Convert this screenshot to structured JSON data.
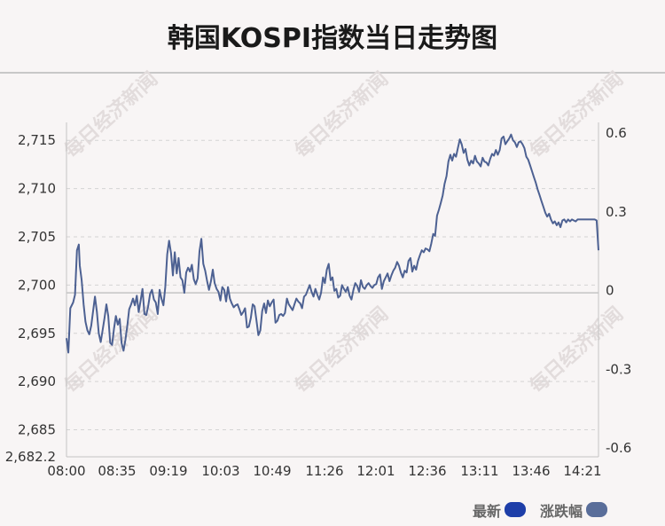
{
  "title": "韩国KOSPI指数当日走势图",
  "watermark": "每日经济新闻",
  "colors": {
    "latest": "#1e3ea8",
    "change": "#5a6e9a",
    "line": "#4d6192",
    "grid": "#d4d4d4"
  },
  "legend": {
    "latest": "最新",
    "change": "涨跌幅"
  },
  "chart_data": {
    "type": "line",
    "title": "韩国KOSPI指数当日走势图",
    "x_ticks": [
      "08:00",
      "08:35",
      "09:19",
      "10:03",
      "10:49",
      "11:26",
      "12:01",
      "12:36",
      "13:11",
      "13:46",
      "14:21"
    ],
    "y_left_ticks": [
      "2,715",
      "2,710",
      "2,705",
      "2,700",
      "2,695",
      "2,690",
      "2,685",
      "2,682.2"
    ],
    "y_left_values": [
      2715,
      2710,
      2705,
      2700,
      2695,
      2690,
      2685,
      2682.2
    ],
    "y_right_ticks": [
      "0.6",
      "0.3",
      "0",
      "-0.3",
      "-0.6"
    ],
    "y_right_values": [
      0.6,
      0.3,
      0,
      -0.3,
      -0.6
    ],
    "ylim_left": [
      2682.2,
      2716.4
    ],
    "ylim_right": [
      -0.6,
      0.6
    ],
    "reference_value": 2699.2,
    "grid": true,
    "legend_position": "bottom-right",
    "series": [
      {
        "name": "最新",
        "points": [
          [
            0,
            2694.5
          ],
          [
            2,
            2693.0
          ],
          [
            4,
            2697.6
          ],
          [
            7,
            2698.2
          ],
          [
            9,
            2699.0
          ],
          [
            11,
            2703.6
          ],
          [
            13,
            2704.2
          ],
          [
            14,
            2702.0
          ],
          [
            16,
            2700.5
          ],
          [
            18,
            2698.0
          ],
          [
            20,
            2696.2
          ],
          [
            22,
            2695.3
          ],
          [
            24,
            2694.9
          ],
          [
            26,
            2695.8
          ],
          [
            28,
            2697.3
          ],
          [
            30,
            2698.8
          ],
          [
            32,
            2697.2
          ],
          [
            34,
            2695.0
          ],
          [
            36,
            2694.1
          ],
          [
            38,
            2695.3
          ],
          [
            40,
            2696.6
          ],
          [
            42,
            2698.0
          ],
          [
            44,
            2696.8
          ],
          [
            46,
            2694.0
          ],
          [
            48,
            2693.8
          ],
          [
            50,
            2695.5
          ],
          [
            52,
            2696.8
          ],
          [
            54,
            2695.9
          ],
          [
            56,
            2696.5
          ],
          [
            58,
            2694.0
          ],
          [
            60,
            2693.2
          ],
          [
            62,
            2694.3
          ],
          [
            64,
            2695.8
          ],
          [
            66,
            2697.5
          ],
          [
            68,
            2698.0
          ],
          [
            70,
            2698.6
          ],
          [
            72,
            2697.9
          ],
          [
            74,
            2698.9
          ],
          [
            76,
            2697.2
          ],
          [
            78,
            2698.4
          ],
          [
            80,
            2699.6
          ],
          [
            82,
            2697.0
          ],
          [
            84,
            2696.9
          ],
          [
            86,
            2697.8
          ],
          [
            88,
            2699.1
          ],
          [
            90,
            2699.5
          ],
          [
            92,
            2698.5
          ],
          [
            94,
            2698.2
          ],
          [
            96,
            2697.0
          ],
          [
            98,
            2699.5
          ],
          [
            100,
            2698.6
          ],
          [
            102,
            2697.9
          ],
          [
            104,
            2699.8
          ],
          [
            106,
            2703.2
          ],
          [
            108,
            2704.6
          ],
          [
            110,
            2703.3
          ],
          [
            112,
            2701.0
          ],
          [
            114,
            2703.4
          ],
          [
            116,
            2701.2
          ],
          [
            118,
            2702.8
          ],
          [
            120,
            2700.8
          ],
          [
            122,
            2700.5
          ],
          [
            124,
            2699.2
          ],
          [
            126,
            2701.3
          ],
          [
            128,
            2701.8
          ],
          [
            130,
            2701.4
          ],
          [
            132,
            2702.1
          ],
          [
            134,
            2700.6
          ],
          [
            136,
            2700.1
          ],
          [
            138,
            2700.7
          ],
          [
            140,
            2703.5
          ],
          [
            142,
            2704.8
          ],
          [
            144,
            2702.2
          ],
          [
            146,
            2701.5
          ],
          [
            148,
            2700.4
          ],
          [
            150,
            2699.5
          ],
          [
            152,
            2700.4
          ],
          [
            154,
            2701.6
          ],
          [
            156,
            2700.2
          ],
          [
            158,
            2699.6
          ],
          [
            160,
            2699.3
          ],
          [
            162,
            2698.4
          ],
          [
            164,
            2699.8
          ],
          [
            166,
            2699.5
          ],
          [
            168,
            2698.3
          ],
          [
            170,
            2699.8
          ],
          [
            172,
            2698.6
          ],
          [
            174,
            2698.1
          ],
          [
            176,
            2697.7
          ],
          [
            178,
            2697.9
          ],
          [
            180,
            2698.0
          ],
          [
            182,
            2697.5
          ],
          [
            184,
            2696.9
          ],
          [
            186,
            2697.2
          ],
          [
            188,
            2697.6
          ],
          [
            190,
            2695.6
          ],
          [
            192,
            2695.7
          ],
          [
            194,
            2696.6
          ],
          [
            196,
            2698.0
          ],
          [
            198,
            2697.8
          ],
          [
            200,
            2696.3
          ],
          [
            202,
            2694.8
          ],
          [
            204,
            2695.3
          ],
          [
            206,
            2697.3
          ],
          [
            208,
            2698.1
          ],
          [
            210,
            2697.1
          ],
          [
            212,
            2698.4
          ],
          [
            214,
            2697.8
          ],
          [
            216,
            2698.2
          ],
          [
            218,
            2698.5
          ],
          [
            220,
            2696.1
          ],
          [
            222,
            2696.3
          ],
          [
            224,
            2696.9
          ],
          [
            226,
            2697.0
          ],
          [
            228,
            2696.8
          ],
          [
            230,
            2697.1
          ],
          [
            232,
            2698.6
          ],
          [
            234,
            2698.0
          ],
          [
            236,
            2697.7
          ],
          [
            238,
            2697.4
          ],
          [
            240,
            2698.0
          ],
          [
            242,
            2698.6
          ],
          [
            244,
            2698.3
          ],
          [
            246,
            2698.1
          ],
          [
            248,
            2697.6
          ],
          [
            250,
            2698.8
          ],
          [
            252,
            2699.0
          ],
          [
            254,
            2699.5
          ],
          [
            256,
            2700.0
          ],
          [
            258,
            2699.3
          ],
          [
            260,
            2698.8
          ],
          [
            262,
            2699.6
          ],
          [
            264,
            2699.0
          ],
          [
            266,
            2698.5
          ],
          [
            268,
            2699.2
          ],
          [
            270,
            2700.8
          ],
          [
            272,
            2700.2
          ],
          [
            274,
            2701.6
          ],
          [
            276,
            2702.2
          ],
          [
            278,
            2700.5
          ],
          [
            280,
            2700.8
          ],
          [
            282,
            2699.4
          ],
          [
            284,
            2699.6
          ],
          [
            286,
            2698.7
          ],
          [
            288,
            2698.9
          ],
          [
            290,
            2700.0
          ],
          [
            292,
            2699.6
          ],
          [
            294,
            2699.3
          ],
          [
            296,
            2699.8
          ],
          [
            298,
            2698.9
          ],
          [
            300,
            2698.5
          ],
          [
            302,
            2699.5
          ],
          [
            304,
            2700.2
          ],
          [
            306,
            2699.9
          ],
          [
            308,
            2699.3
          ],
          [
            310,
            2700.5
          ],
          [
            312,
            2699.8
          ],
          [
            314,
            2699.6
          ],
          [
            316,
            2700.0
          ],
          [
            318,
            2700.2
          ],
          [
            320,
            2699.9
          ],
          [
            322,
            2699.7
          ],
          [
            324,
            2700.0
          ],
          [
            326,
            2700.1
          ],
          [
            328,
            2700.8
          ],
          [
            330,
            2701.1
          ],
          [
            332,
            2699.6
          ],
          [
            334,
            2700.4
          ],
          [
            336,
            2700.8
          ],
          [
            338,
            2701.2
          ],
          [
            340,
            2700.4
          ],
          [
            342,
            2701.0
          ],
          [
            344,
            2701.5
          ],
          [
            346,
            2701.8
          ],
          [
            348,
            2702.4
          ],
          [
            350,
            2702.0
          ],
          [
            352,
            2701.3
          ],
          [
            354,
            2700.8
          ],
          [
            356,
            2701.5
          ],
          [
            358,
            2701.3
          ],
          [
            360,
            2702.5
          ],
          [
            362,
            2702.8
          ],
          [
            364,
            2701.4
          ],
          [
            366,
            2702.0
          ],
          [
            368,
            2701.6
          ],
          [
            370,
            2702.5
          ],
          [
            372,
            2703.1
          ],
          [
            374,
            2703.6
          ],
          [
            376,
            2703.4
          ],
          [
            378,
            2703.8
          ],
          [
            380,
            2703.7
          ],
          [
            382,
            2703.5
          ],
          [
            384,
            2704.3
          ],
          [
            386,
            2705.3
          ],
          [
            388,
            2705.1
          ],
          [
            390,
            2707.2
          ],
          [
            392,
            2707.8
          ],
          [
            394,
            2708.5
          ],
          [
            396,
            2709.3
          ],
          [
            398,
            2710.5
          ],
          [
            400,
            2711.3
          ],
          [
            402,
            2712.8
          ],
          [
            404,
            2713.5
          ],
          [
            406,
            2712.9
          ],
          [
            408,
            2713.6
          ],
          [
            410,
            2713.3
          ],
          [
            412,
            2714.2
          ],
          [
            414,
            2715.1
          ],
          [
            416,
            2714.6
          ],
          [
            418,
            2713.7
          ],
          [
            420,
            2714.1
          ],
          [
            422,
            2713.0
          ],
          [
            424,
            2712.4
          ],
          [
            426,
            2712.9
          ],
          [
            428,
            2712.6
          ],
          [
            430,
            2713.4
          ],
          [
            432,
            2712.8
          ],
          [
            434,
            2712.6
          ],
          [
            436,
            2712.3
          ],
          [
            438,
            2713.2
          ],
          [
            440,
            2712.8
          ],
          [
            442,
            2712.7
          ],
          [
            444,
            2712.4
          ],
          [
            446,
            2713.1
          ],
          [
            448,
            2713.6
          ],
          [
            450,
            2713.4
          ],
          [
            452,
            2714.0
          ],
          [
            454,
            2713.5
          ],
          [
            456,
            2714.0
          ],
          [
            458,
            2715.2
          ],
          [
            460,
            2715.4
          ],
          [
            462,
            2714.6
          ],
          [
            464,
            2714.9
          ],
          [
            466,
            2715.2
          ],
          [
            468,
            2715.6
          ],
          [
            470,
            2715.0
          ],
          [
            472,
            2714.8
          ],
          [
            474,
            2714.3
          ],
          [
            476,
            2714.8
          ],
          [
            478,
            2714.9
          ],
          [
            480,
            2714.6
          ],
          [
            482,
            2714.2
          ],
          [
            484,
            2713.3
          ],
          [
            486,
            2713.0
          ],
          [
            488,
            2712.4
          ],
          [
            490,
            2711.8
          ],
          [
            492,
            2711.2
          ],
          [
            494,
            2710.6
          ],
          [
            496,
            2709.9
          ],
          [
            498,
            2709.3
          ],
          [
            500,
            2708.7
          ],
          [
            502,
            2708.1
          ],
          [
            504,
            2707.5
          ],
          [
            506,
            2707.1
          ],
          [
            508,
            2707.4
          ],
          [
            510,
            2706.8
          ],
          [
            512,
            2706.4
          ],
          [
            514,
            2706.6
          ],
          [
            516,
            2706.2
          ],
          [
            518,
            2706.5
          ],
          [
            520,
            2706.0
          ],
          [
            522,
            2706.7
          ],
          [
            524,
            2706.8
          ],
          [
            526,
            2706.5
          ],
          [
            528,
            2706.8
          ],
          [
            530,
            2706.6
          ],
          [
            532,
            2706.8
          ],
          [
            534,
            2706.7
          ],
          [
            536,
            2706.6
          ],
          [
            538,
            2706.8
          ],
          [
            540,
            2706.8
          ],
          [
            542,
            2706.8
          ],
          [
            544,
            2706.8
          ],
          [
            546,
            2706.8
          ],
          [
            548,
            2706.8
          ],
          [
            550,
            2706.8
          ],
          [
            552,
            2706.8
          ],
          [
            554,
            2706.8
          ],
          [
            556,
            2706.8
          ],
          [
            558,
            2706.7
          ],
          [
            560,
            2703.6
          ]
        ]
      }
    ]
  }
}
